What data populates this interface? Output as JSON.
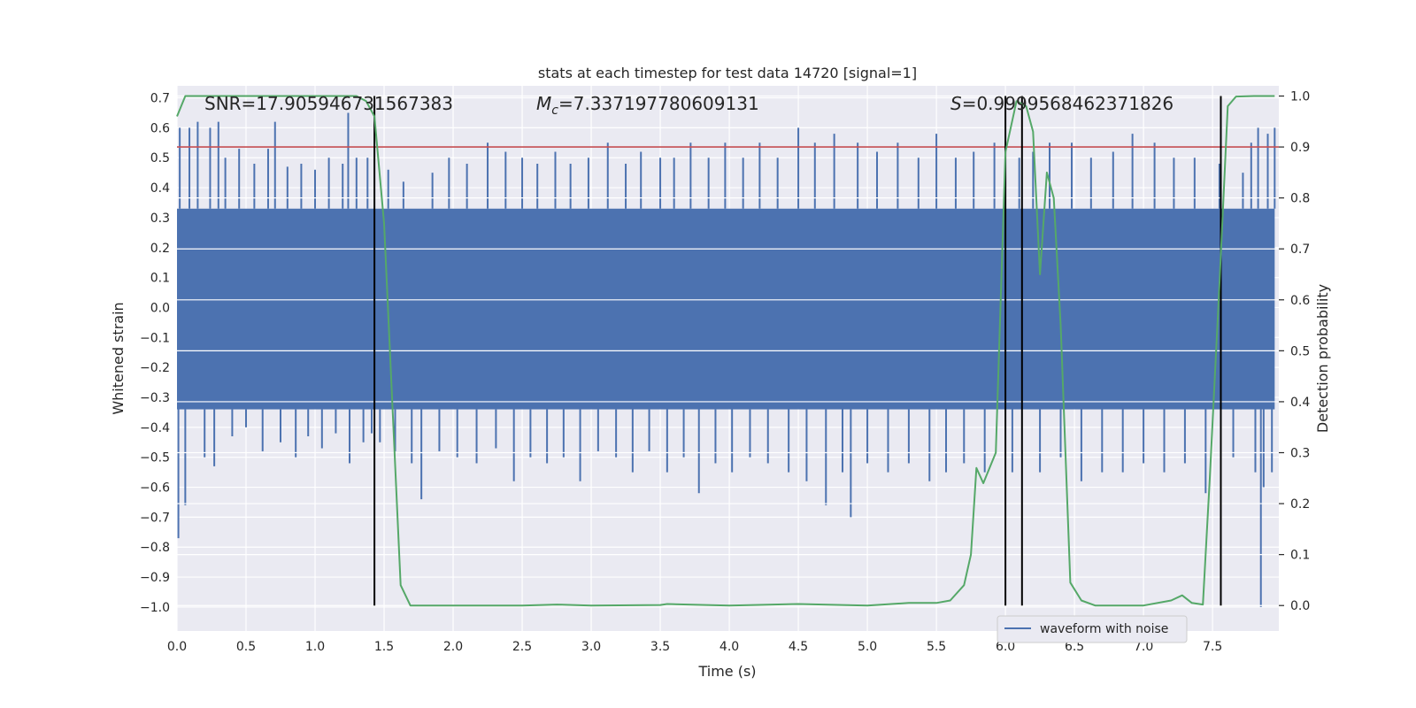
{
  "colors": {
    "background": "#ffffff",
    "axes_face": "#eaeaf2",
    "grid": "#ffffff",
    "waveform": "#4c72b0",
    "probability": "#55a868",
    "threshold": "#c44e52",
    "markers": "#000000",
    "text": "#262626"
  },
  "chart_data": {
    "type": "line",
    "title": "stats at each timestep for test data 14720 [signal=1]",
    "xlabel": "Time (s)",
    "ylabel_left": "Whitened strain",
    "ylabel_right": "Detection probability",
    "xlim": [
      0.0,
      7.98
    ],
    "ylim_left": [
      -1.08,
      0.74
    ],
    "ylim_right": [
      -0.05,
      1.02
    ],
    "x_ticks": [
      "0.0",
      "0.5",
      "1.0",
      "1.5",
      "2.0",
      "2.5",
      "3.0",
      "3.5",
      "4.0",
      "4.5",
      "5.0",
      "5.5",
      "6.0",
      "6.5",
      "7.0",
      "7.5"
    ],
    "y_left_ticks": [
      "0.7",
      "0.6",
      "0.5",
      "0.4",
      "0.3",
      "0.2",
      "0.1",
      "0.0",
      "-0.1",
      "-0.2",
      "-0.3",
      "-0.4",
      "-0.5",
      "-0.6",
      "-0.7",
      "-0.8",
      "-0.9",
      "-1.0"
    ],
    "y_right_ticks": [
      "1.0",
      "0.9",
      "0.8",
      "0.7",
      "0.6",
      "0.5",
      "0.4",
      "0.3",
      "0.2",
      "0.1",
      "0.0"
    ],
    "grid": true,
    "annotations": {
      "snr": "SNR=17.905946731567383",
      "mc_symbol": "M",
      "mc_sub": "c",
      "mc_value": "=7.337197780609131",
      "s_symbol": "S",
      "s_value": "=0.9999568462371826"
    },
    "threshold_probability": 0.9,
    "vertical_markers": [
      1.43,
      6.0,
      6.12,
      7.56
    ],
    "legend": {
      "label": "waveform with noise",
      "placement": "bottom-right"
    },
    "waveform": {
      "name": "waveform with noise",
      "band_lower": -0.34,
      "band_upper": 0.33,
      "spikes": [
        [
          0.01,
          -0.77
        ],
        [
          0.02,
          0.6
        ],
        [
          0.06,
          -0.66
        ],
        [
          0.09,
          0.6
        ],
        [
          0.15,
          0.62
        ],
        [
          0.2,
          -0.5
        ],
        [
          0.24,
          0.6
        ],
        [
          0.27,
          -0.53
        ],
        [
          0.3,
          0.62
        ],
        [
          0.35,
          0.5
        ],
        [
          0.4,
          -0.43
        ],
        [
          0.45,
          0.53
        ],
        [
          0.5,
          -0.4
        ],
        [
          0.56,
          0.48
        ],
        [
          0.62,
          -0.48
        ],
        [
          0.66,
          0.53
        ],
        [
          0.71,
          0.62
        ],
        [
          0.75,
          -0.45
        ],
        [
          0.8,
          0.47
        ],
        [
          0.86,
          -0.5
        ],
        [
          0.9,
          0.48
        ],
        [
          0.95,
          -0.43
        ],
        [
          1.0,
          0.46
        ],
        [
          1.05,
          -0.47
        ],
        [
          1.1,
          0.5
        ],
        [
          1.15,
          -0.42
        ],
        [
          1.2,
          0.48
        ],
        [
          1.24,
          0.65
        ],
        [
          1.25,
          -0.52
        ],
        [
          1.3,
          0.5
        ],
        [
          1.35,
          -0.45
        ],
        [
          1.38,
          0.5
        ],
        [
          1.41,
          -0.42
        ],
        [
          1.47,
          -0.45
        ],
        [
          1.53,
          0.46
        ],
        [
          1.58,
          -0.48
        ],
        [
          1.64,
          0.42
        ],
        [
          1.7,
          -0.52
        ],
        [
          1.77,
          -0.64
        ],
        [
          1.85,
          0.45
        ],
        [
          1.9,
          -0.48
        ],
        [
          1.97,
          0.5
        ],
        [
          2.03,
          -0.5
        ],
        [
          2.1,
          0.48
        ],
        [
          2.17,
          -0.52
        ],
        [
          2.25,
          0.55
        ],
        [
          2.31,
          -0.47
        ],
        [
          2.38,
          0.52
        ],
        [
          2.44,
          -0.58
        ],
        [
          2.5,
          0.5
        ],
        [
          2.56,
          -0.5
        ],
        [
          2.61,
          0.48
        ],
        [
          2.68,
          -0.52
        ],
        [
          2.74,
          0.52
        ],
        [
          2.8,
          -0.5
        ],
        [
          2.85,
          0.48
        ],
        [
          2.92,
          -0.58
        ],
        [
          2.98,
          0.5
        ],
        [
          3.05,
          -0.48
        ],
        [
          3.12,
          0.55
        ],
        [
          3.18,
          -0.5
        ],
        [
          3.25,
          0.48
        ],
        [
          3.3,
          -0.55
        ],
        [
          3.36,
          0.52
        ],
        [
          3.42,
          -0.48
        ],
        [
          3.5,
          0.5
        ],
        [
          3.55,
          -0.55
        ],
        [
          3.6,
          0.5
        ],
        [
          3.67,
          -0.5
        ],
        [
          3.72,
          0.55
        ],
        [
          3.78,
          -0.62
        ],
        [
          3.85,
          0.5
        ],
        [
          3.9,
          -0.52
        ],
        [
          3.97,
          0.55
        ],
        [
          4.02,
          -0.55
        ],
        [
          4.1,
          0.5
        ],
        [
          4.15,
          -0.5
        ],
        [
          4.22,
          0.55
        ],
        [
          4.28,
          -0.52
        ],
        [
          4.35,
          0.5
        ],
        [
          4.43,
          -0.55
        ],
        [
          4.5,
          0.6
        ],
        [
          4.56,
          -0.58
        ],
        [
          4.62,
          0.55
        ],
        [
          4.7,
          -0.66
        ],
        [
          4.76,
          0.58
        ],
        [
          4.82,
          -0.55
        ],
        [
          4.88,
          -0.7
        ],
        [
          4.93,
          0.55
        ],
        [
          5.0,
          -0.52
        ],
        [
          5.07,
          0.52
        ],
        [
          5.15,
          -0.55
        ],
        [
          5.22,
          0.55
        ],
        [
          5.3,
          -0.52
        ],
        [
          5.37,
          0.5
        ],
        [
          5.45,
          -0.58
        ],
        [
          5.5,
          0.58
        ],
        [
          5.57,
          -0.55
        ],
        [
          5.64,
          0.5
        ],
        [
          5.7,
          -0.52
        ],
        [
          5.77,
          0.52
        ],
        [
          5.85,
          -0.55
        ],
        [
          5.92,
          0.55
        ],
        [
          6.05,
          -0.55
        ],
        [
          6.1,
          0.5
        ],
        [
          6.2,
          0.52
        ],
        [
          6.25,
          -0.55
        ],
        [
          6.32,
          0.55
        ],
        [
          6.4,
          -0.5
        ],
        [
          6.48,
          0.55
        ],
        [
          6.55,
          -0.58
        ],
        [
          6.62,
          0.5
        ],
        [
          6.7,
          -0.55
        ],
        [
          6.78,
          0.52
        ],
        [
          6.85,
          -0.55
        ],
        [
          6.92,
          0.58
        ],
        [
          7.0,
          -0.52
        ],
        [
          7.08,
          0.55
        ],
        [
          7.15,
          -0.55
        ],
        [
          7.22,
          0.5
        ],
        [
          7.3,
          -0.52
        ],
        [
          7.37,
          0.5
        ],
        [
          7.45,
          -0.62
        ],
        [
          7.55,
          0.48
        ],
        [
          7.65,
          -0.5
        ],
        [
          7.72,
          0.45
        ],
        [
          7.78,
          0.55
        ],
        [
          7.81,
          -0.55
        ],
        [
          7.83,
          0.6
        ],
        [
          7.85,
          -1.0
        ],
        [
          7.87,
          -0.6
        ],
        [
          7.9,
          0.58
        ],
        [
          7.93,
          -0.55
        ],
        [
          7.95,
          0.6
        ]
      ]
    },
    "probability": {
      "name": "Detection probability",
      "x": [
        0.0,
        0.06,
        0.2,
        0.5,
        1.0,
        1.3,
        1.37,
        1.43,
        1.5,
        1.62,
        1.69,
        1.75,
        2.0,
        2.5,
        2.75,
        3.0,
        3.5,
        3.55,
        4.0,
        4.5,
        5.0,
        5.3,
        5.5,
        5.6,
        5.7,
        5.75,
        5.79,
        5.84,
        5.93,
        6.0,
        6.08,
        6.15,
        6.2,
        6.25,
        6.3,
        6.35,
        6.4,
        6.47,
        6.55,
        6.65,
        7.0,
        7.2,
        7.28,
        7.35,
        7.43,
        7.48,
        7.55,
        7.61,
        7.67,
        7.8,
        7.95
      ],
      "y": [
        0.96,
        1.0,
        1.0,
        1.0,
        1.0,
        1.0,
        0.99,
        0.96,
        0.75,
        0.04,
        0.0,
        0.0,
        0.0,
        0.0,
        0.002,
        0.0,
        0.001,
        0.003,
        0.0,
        0.003,
        0.0,
        0.005,
        0.005,
        0.01,
        0.04,
        0.1,
        0.27,
        0.24,
        0.3,
        0.89,
        0.99,
        0.98,
        0.93,
        0.65,
        0.85,
        0.8,
        0.55,
        0.045,
        0.01,
        0.0,
        0.0,
        0.01,
        0.02,
        0.005,
        0.002,
        0.25,
        0.63,
        0.98,
        0.999,
        1.0,
        1.0
      ]
    }
  }
}
